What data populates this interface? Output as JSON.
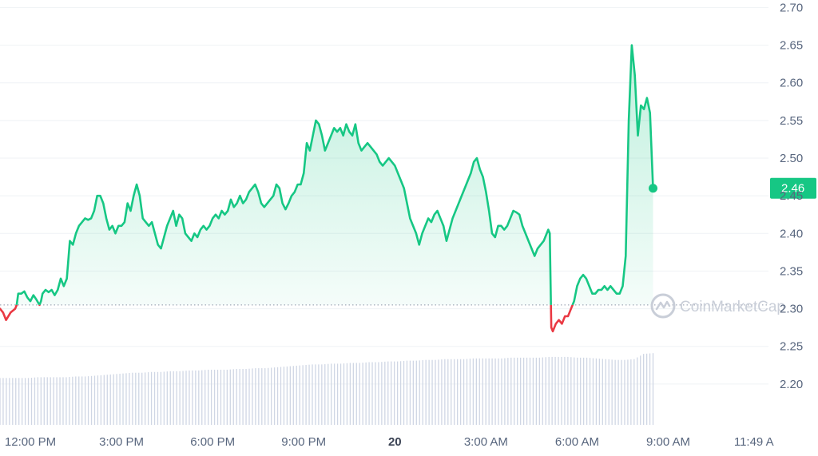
{
  "chart_data": {
    "type": "area",
    "y_ticks": [
      2.2,
      2.25,
      2.3,
      2.35,
      2.4,
      2.45,
      2.5,
      2.55,
      2.6,
      2.65,
      2.7
    ],
    "y_tick_labels": [
      "2.20",
      "2.25",
      "2.30",
      "2.35",
      "2.40",
      "2.45",
      "2.50",
      "2.55",
      "2.60",
      "2.65",
      "2.70"
    ],
    "ylim": [
      2.15,
      2.71
    ],
    "x_range_hours": [
      11.0,
      36.3
    ],
    "x_ticks": [
      {
        "label": "12:00 PM",
        "hour": 12,
        "bold": false
      },
      {
        "label": "3:00 PM",
        "hour": 15,
        "bold": false
      },
      {
        "label": "6:00 PM",
        "hour": 18,
        "bold": false
      },
      {
        "label": "9:00 PM",
        "hour": 21,
        "bold": false
      },
      {
        "label": "20",
        "hour": 24,
        "bold": true
      },
      {
        "label": "3:00 AM",
        "hour": 27,
        "bold": false
      },
      {
        "label": "6:00 AM",
        "hour": 30,
        "bold": false
      },
      {
        "label": "9:00 AM",
        "hour": 33,
        "bold": false
      },
      {
        "label": "11:49 A",
        "hour": 35.82,
        "bold": false
      }
    ],
    "reference_price": 2.305,
    "current_price": 2.46,
    "current_price_label": "2.46",
    "up_color": "#16c784",
    "down_color": "#ea3943",
    "volume_color": "#cfd6e4",
    "watermark": "CoinMarketCap",
    "price_series": [
      [
        11.0,
        2.3
      ],
      [
        11.1,
        2.295
      ],
      [
        11.2,
        2.285
      ],
      [
        11.35,
        2.295
      ],
      [
        11.5,
        2.3
      ],
      [
        11.55,
        2.305
      ],
      [
        11.6,
        2.32
      ],
      [
        11.7,
        2.32
      ],
      [
        11.8,
        2.323
      ],
      [
        11.9,
        2.315
      ],
      [
        12.0,
        2.31
      ],
      [
        12.1,
        2.318
      ],
      [
        12.2,
        2.312
      ],
      [
        12.3,
        2.305
      ],
      [
        12.35,
        2.31
      ],
      [
        12.4,
        2.32
      ],
      [
        12.5,
        2.325
      ],
      [
        12.6,
        2.322
      ],
      [
        12.7,
        2.325
      ],
      [
        12.8,
        2.318
      ],
      [
        12.9,
        2.325
      ],
      [
        13.0,
        2.34
      ],
      [
        13.1,
        2.33
      ],
      [
        13.2,
        2.34
      ],
      [
        13.3,
        2.39
      ],
      [
        13.4,
        2.385
      ],
      [
        13.5,
        2.4
      ],
      [
        13.6,
        2.41
      ],
      [
        13.7,
        2.415
      ],
      [
        13.8,
        2.42
      ],
      [
        13.9,
        2.418
      ],
      [
        14.0,
        2.42
      ],
      [
        14.1,
        2.43
      ],
      [
        14.2,
        2.45
      ],
      [
        14.3,
        2.45
      ],
      [
        14.4,
        2.44
      ],
      [
        14.5,
        2.42
      ],
      [
        14.6,
        2.405
      ],
      [
        14.7,
        2.41
      ],
      [
        14.8,
        2.4
      ],
      [
        14.9,
        2.41
      ],
      [
        15.0,
        2.41
      ],
      [
        15.1,
        2.415
      ],
      [
        15.2,
        2.44
      ],
      [
        15.3,
        2.43
      ],
      [
        15.4,
        2.45
      ],
      [
        15.5,
        2.465
      ],
      [
        15.6,
        2.45
      ],
      [
        15.7,
        2.42
      ],
      [
        15.8,
        2.415
      ],
      [
        15.9,
        2.41
      ],
      [
        16.0,
        2.415
      ],
      [
        16.1,
        2.4
      ],
      [
        16.2,
        2.385
      ],
      [
        16.3,
        2.38
      ],
      [
        16.4,
        2.395
      ],
      [
        16.5,
        2.41
      ],
      [
        16.6,
        2.42
      ],
      [
        16.7,
        2.43
      ],
      [
        16.8,
        2.41
      ],
      [
        16.9,
        2.425
      ],
      [
        17.0,
        2.42
      ],
      [
        17.1,
        2.4
      ],
      [
        17.2,
        2.395
      ],
      [
        17.3,
        2.39
      ],
      [
        17.4,
        2.4
      ],
      [
        17.5,
        2.395
      ],
      [
        17.6,
        2.405
      ],
      [
        17.7,
        2.41
      ],
      [
        17.8,
        2.405
      ],
      [
        17.9,
        2.41
      ],
      [
        18.0,
        2.42
      ],
      [
        18.1,
        2.425
      ],
      [
        18.2,
        2.42
      ],
      [
        18.3,
        2.43
      ],
      [
        18.4,
        2.425
      ],
      [
        18.5,
        2.43
      ],
      [
        18.6,
        2.445
      ],
      [
        18.7,
        2.435
      ],
      [
        18.8,
        2.44
      ],
      [
        18.9,
        2.45
      ],
      [
        19.0,
        2.44
      ],
      [
        19.1,
        2.445
      ],
      [
        19.2,
        2.455
      ],
      [
        19.3,
        2.46
      ],
      [
        19.4,
        2.465
      ],
      [
        19.5,
        2.455
      ],
      [
        19.6,
        2.44
      ],
      [
        19.7,
        2.435
      ],
      [
        19.8,
        2.44
      ],
      [
        19.9,
        2.445
      ],
      [
        20.0,
        2.45
      ],
      [
        20.1,
        2.465
      ],
      [
        20.2,
        2.46
      ],
      [
        20.3,
        2.44
      ],
      [
        20.4,
        2.432
      ],
      [
        20.5,
        2.44
      ],
      [
        20.6,
        2.45
      ],
      [
        20.7,
        2.455
      ],
      [
        20.8,
        2.465
      ],
      [
        20.9,
        2.465
      ],
      [
        21.0,
        2.48
      ],
      [
        21.1,
        2.52
      ],
      [
        21.2,
        2.51
      ],
      [
        21.3,
        2.53
      ],
      [
        21.4,
        2.55
      ],
      [
        21.5,
        2.545
      ],
      [
        21.6,
        2.53
      ],
      [
        21.7,
        2.51
      ],
      [
        21.8,
        2.52
      ],
      [
        21.9,
        2.53
      ],
      [
        22.0,
        2.54
      ],
      [
        22.1,
        2.535
      ],
      [
        22.2,
        2.54
      ],
      [
        22.3,
        2.53
      ],
      [
        22.4,
        2.545
      ],
      [
        22.5,
        2.535
      ],
      [
        22.6,
        2.53
      ],
      [
        22.7,
        2.545
      ],
      [
        22.8,
        2.52
      ],
      [
        22.9,
        2.51
      ],
      [
        23.0,
        2.515
      ],
      [
        23.1,
        2.52
      ],
      [
        23.2,
        2.515
      ],
      [
        23.3,
        2.51
      ],
      [
        23.4,
        2.505
      ],
      [
        23.5,
        2.495
      ],
      [
        23.6,
        2.49
      ],
      [
        23.7,
        2.495
      ],
      [
        23.8,
        2.5
      ],
      [
        23.9,
        2.495
      ],
      [
        24.0,
        2.49
      ],
      [
        24.1,
        2.48
      ],
      [
        24.2,
        2.47
      ],
      [
        24.3,
        2.46
      ],
      [
        24.4,
        2.44
      ],
      [
        24.5,
        2.42
      ],
      [
        24.6,
        2.41
      ],
      [
        24.7,
        2.4
      ],
      [
        24.8,
        2.385
      ],
      [
        24.9,
        2.4
      ],
      [
        25.0,
        2.41
      ],
      [
        25.1,
        2.42
      ],
      [
        25.2,
        2.415
      ],
      [
        25.3,
        2.425
      ],
      [
        25.4,
        2.43
      ],
      [
        25.5,
        2.42
      ],
      [
        25.6,
        2.41
      ],
      [
        25.7,
        2.39
      ],
      [
        25.8,
        2.405
      ],
      [
        25.9,
        2.42
      ],
      [
        26.0,
        2.43
      ],
      [
        26.1,
        2.44
      ],
      [
        26.2,
        2.45
      ],
      [
        26.3,
        2.46
      ],
      [
        26.4,
        2.47
      ],
      [
        26.5,
        2.48
      ],
      [
        26.6,
        2.495
      ],
      [
        26.7,
        2.5
      ],
      [
        26.8,
        2.485
      ],
      [
        26.9,
        2.475
      ],
      [
        27.0,
        2.455
      ],
      [
        27.1,
        2.43
      ],
      [
        27.2,
        2.4
      ],
      [
        27.3,
        2.395
      ],
      [
        27.4,
        2.41
      ],
      [
        27.5,
        2.41
      ],
      [
        27.6,
        2.405
      ],
      [
        27.7,
        2.41
      ],
      [
        27.8,
        2.42
      ],
      [
        27.9,
        2.43
      ],
      [
        28.0,
        2.428
      ],
      [
        28.1,
        2.425
      ],
      [
        28.2,
        2.41
      ],
      [
        28.3,
        2.4
      ],
      [
        28.4,
        2.39
      ],
      [
        28.5,
        2.38
      ],
      [
        28.6,
        2.37
      ],
      [
        28.7,
        2.38
      ],
      [
        28.8,
        2.385
      ],
      [
        28.9,
        2.39
      ],
      [
        29.0,
        2.4
      ],
      [
        29.05,
        2.405
      ],
      [
        29.1,
        2.4
      ],
      [
        29.15,
        2.275
      ],
      [
        29.2,
        2.27
      ],
      [
        29.3,
        2.28
      ],
      [
        29.4,
        2.285
      ],
      [
        29.5,
        2.28
      ],
      [
        29.6,
        2.29
      ],
      [
        29.7,
        2.29
      ],
      [
        29.8,
        2.3
      ],
      [
        29.9,
        2.31
      ],
      [
        30.0,
        2.33
      ],
      [
        30.1,
        2.34
      ],
      [
        30.2,
        2.345
      ],
      [
        30.3,
        2.34
      ],
      [
        30.4,
        2.33
      ],
      [
        30.5,
        2.32
      ],
      [
        30.6,
        2.32
      ],
      [
        30.7,
        2.325
      ],
      [
        30.8,
        2.325
      ],
      [
        30.9,
        2.33
      ],
      [
        31.0,
        2.325
      ],
      [
        31.1,
        2.33
      ],
      [
        31.2,
        2.325
      ],
      [
        31.3,
        2.32
      ],
      [
        31.4,
        2.32
      ],
      [
        31.5,
        2.33
      ],
      [
        31.6,
        2.37
      ],
      [
        31.7,
        2.55
      ],
      [
        31.8,
        2.65
      ],
      [
        31.9,
        2.61
      ],
      [
        32.0,
        2.53
      ],
      [
        32.1,
        2.57
      ],
      [
        32.2,
        2.565
      ],
      [
        32.3,
        2.58
      ],
      [
        32.4,
        2.56
      ],
      [
        32.5,
        2.46
      ]
    ],
    "volume_series": [
      2.208,
      2.208,
      2.208,
      2.208,
      2.209,
      2.209,
      2.209,
      2.209,
      2.21,
      2.21,
      2.211,
      2.212,
      2.213,
      2.214,
      2.215,
      2.215,
      2.216,
      2.216,
      2.217,
      2.217,
      2.218,
      2.218,
      2.219,
      2.219,
      2.219,
      2.22,
      2.22,
      2.221,
      2.221,
      2.222,
      2.223,
      2.224,
      2.225,
      2.226,
      2.226,
      2.227,
      2.227,
      2.228,
      2.228,
      2.229,
      2.229,
      2.23,
      2.23,
      2.231,
      2.231,
      2.232,
      2.232,
      2.233,
      2.233,
      2.233,
      2.234,
      2.234,
      2.234,
      2.234,
      2.235,
      2.235,
      2.235,
      2.235,
      2.236,
      2.236,
      2.236,
      2.235,
      2.235,
      2.234,
      2.233,
      2.232,
      2.232,
      2.233,
      2.24,
      2.241
    ]
  }
}
